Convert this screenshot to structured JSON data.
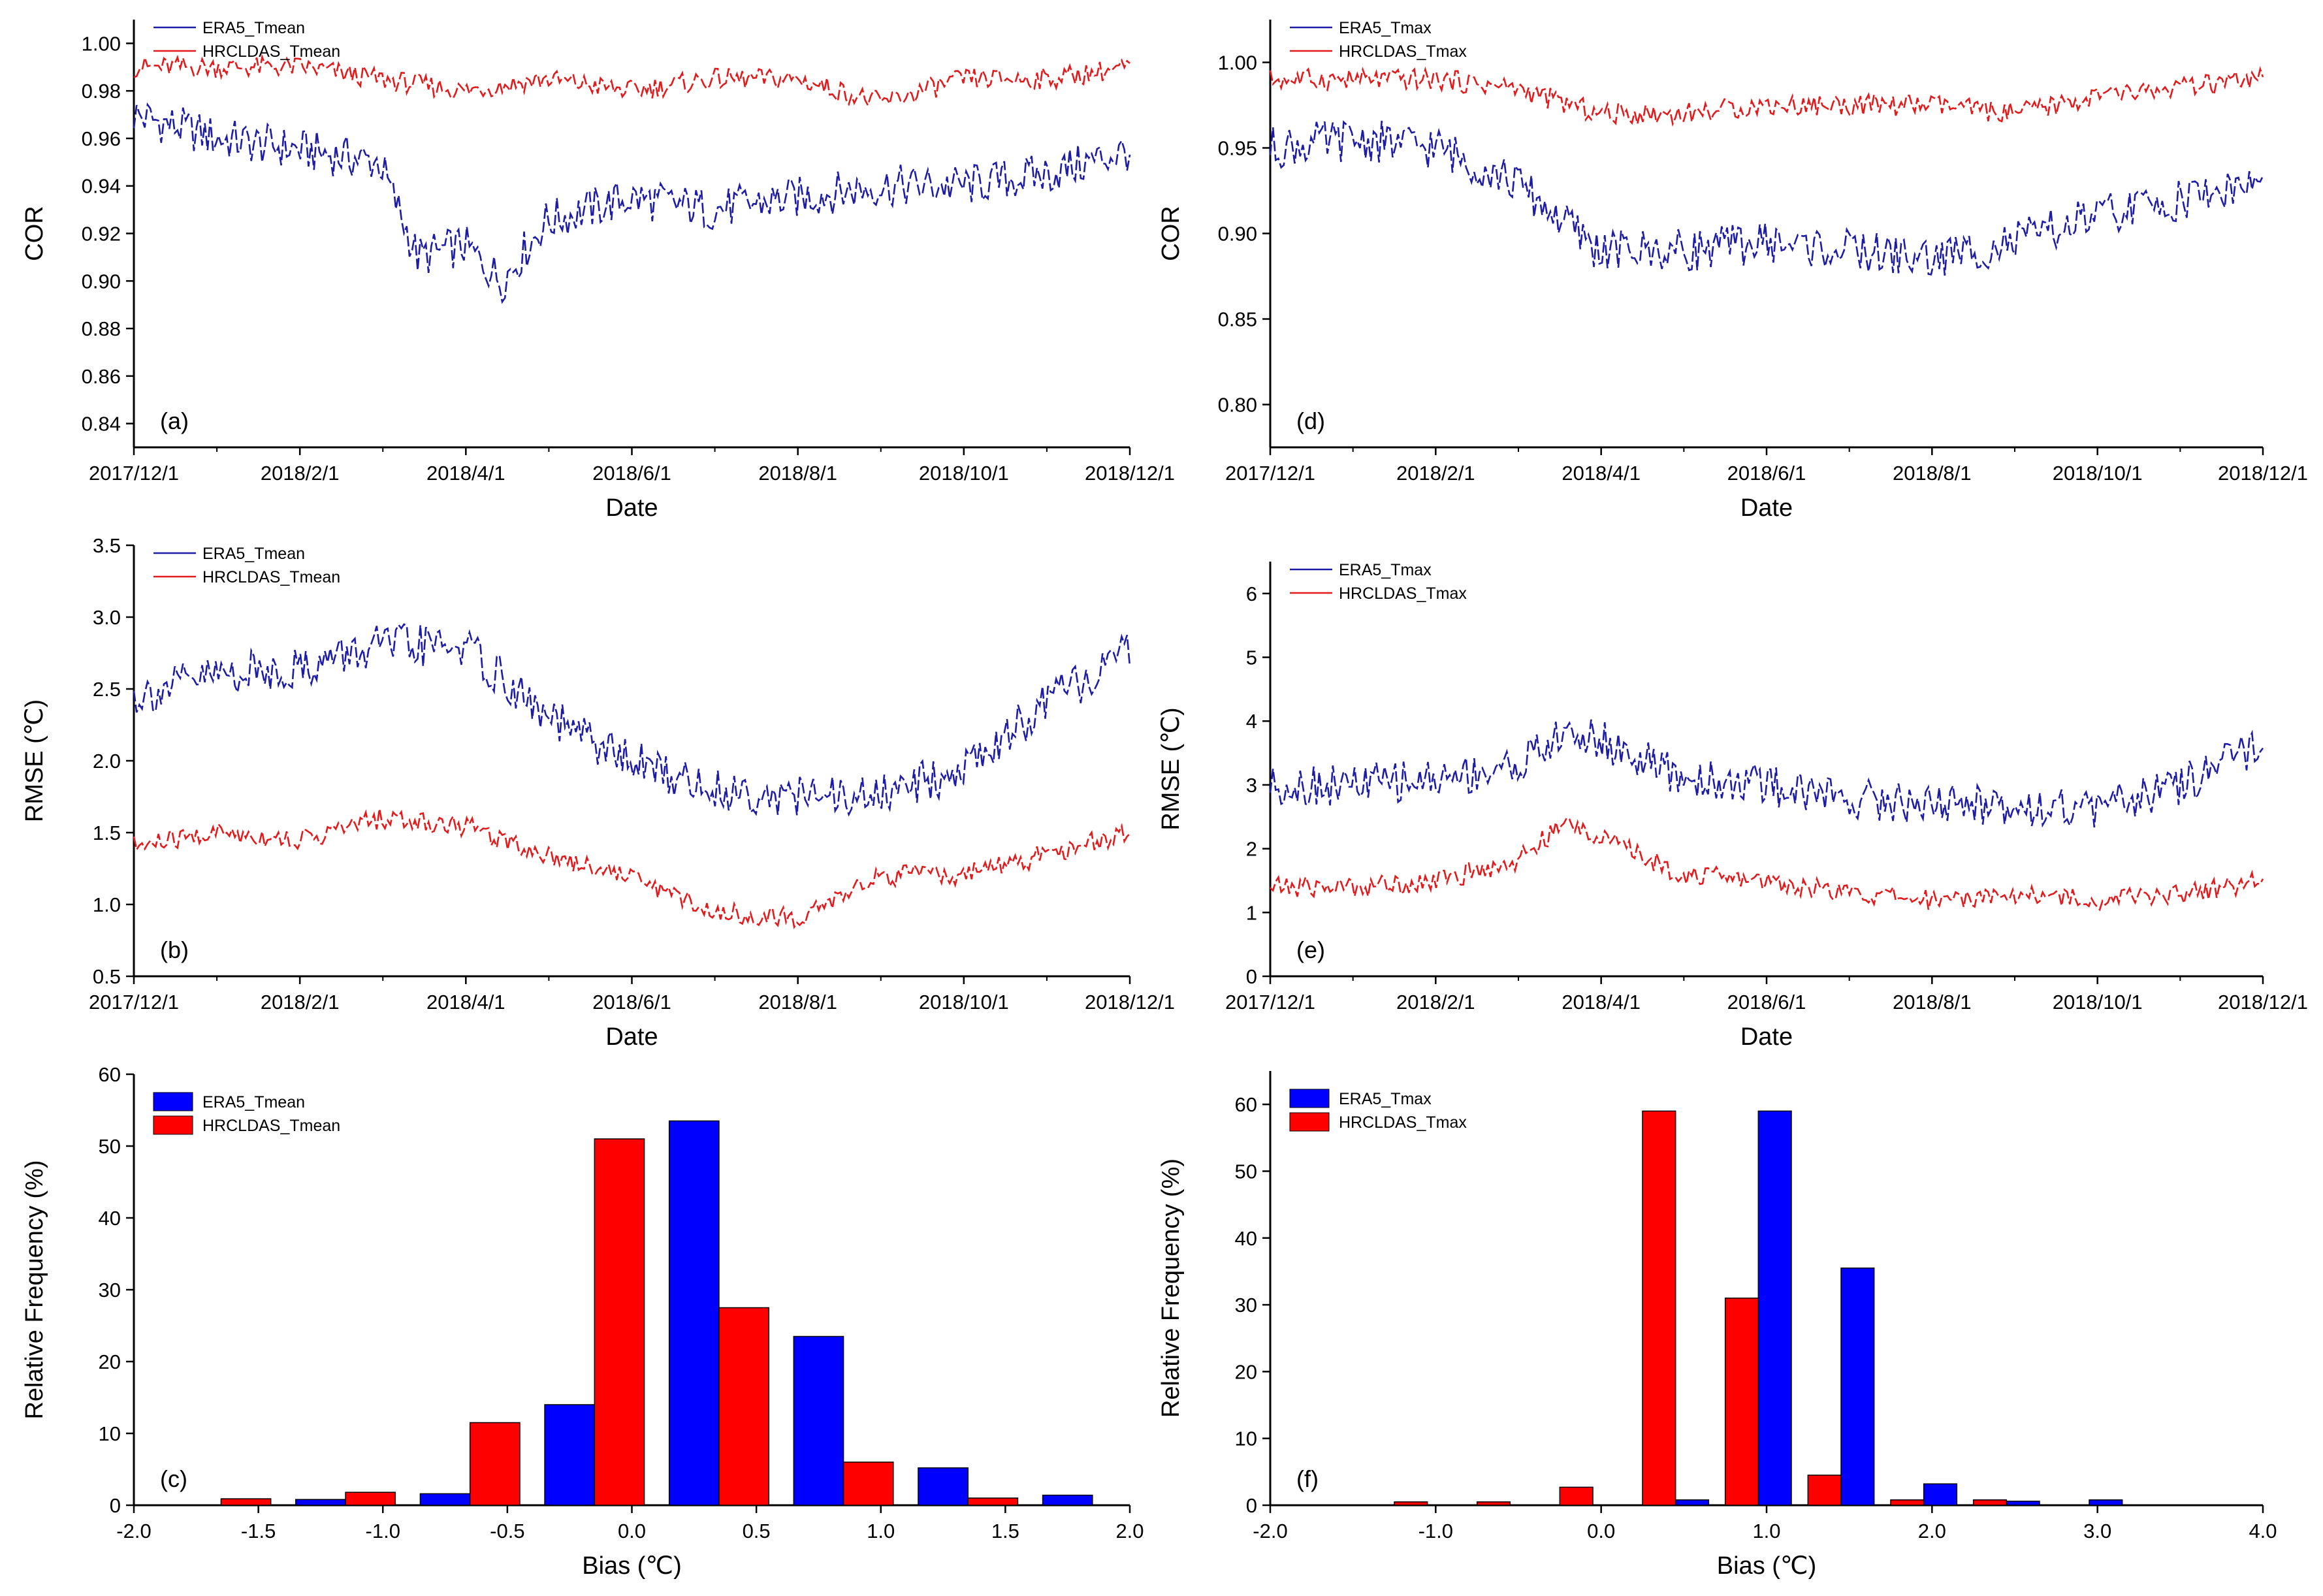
{
  "figure": {
    "colors": {
      "era5": "#1c1ca6",
      "hrcldas": "#e31a1c",
      "era5_bar": "#0000ff",
      "hrcldas_bar": "#ff0000"
    }
  },
  "chart_data": [
    {
      "id": "a",
      "type": "line",
      "panel_label": "(a)",
      "xlabel": "Date",
      "ylabel": "COR",
      "x_ticks": [
        "2017/12/1",
        "2018/2/1",
        "2018/4/1",
        "2018/6/1",
        "2018/8/1",
        "2018/10/1",
        "2018/12/1"
      ],
      "x_range": [
        "2017-12-01",
        "2018-12-01"
      ],
      "ylim": [
        0.83,
        1.01
      ],
      "y_ticks": [
        "0.84",
        "0.86",
        "0.88",
        "0.90",
        "0.92",
        "0.94",
        "0.96",
        "0.98",
        "1.00"
      ],
      "y_tick_values": [
        0.84,
        0.86,
        0.88,
        0.9,
        0.92,
        0.94,
        0.96,
        0.98,
        1.0
      ],
      "legend_position": "top-left",
      "series": [
        {
          "name": "ERA5_Tmean",
          "color": "#1c1ca6",
          "style": "dashed",
          "x": [
            "2017-12-01",
            "2018-01-01",
            "2018-02-01",
            "2018-03-01",
            "2018-03-15",
            "2018-04-01",
            "2018-04-15",
            "2018-05-01",
            "2018-06-01",
            "2018-07-01",
            "2018-08-01",
            "2018-09-01",
            "2018-10-01",
            "2018-11-01",
            "2018-12-01"
          ],
          "y": [
            0.97,
            0.96,
            0.955,
            0.95,
            0.91,
            0.915,
            0.9,
            0.925,
            0.935,
            0.93,
            0.935,
            0.94,
            0.94,
            0.945,
            0.955
          ]
        },
        {
          "name": "HRCLDAS_Tmean",
          "color": "#e31a1c",
          "style": "dashed",
          "x": [
            "2017-12-01",
            "2018-01-01",
            "2018-02-01",
            "2018-03-01",
            "2018-04-01",
            "2018-05-01",
            "2018-06-01",
            "2018-07-01",
            "2018-08-01",
            "2018-09-01",
            "2018-10-01",
            "2018-11-01",
            "2018-12-01"
          ],
          "y": [
            0.99,
            0.99,
            0.99,
            0.985,
            0.98,
            0.985,
            0.98,
            0.985,
            0.985,
            0.975,
            0.985,
            0.985,
            0.99
          ]
        }
      ]
    },
    {
      "id": "d",
      "type": "line",
      "panel_label": "(d)",
      "xlabel": "Date",
      "ylabel": "COR",
      "x_ticks": [
        "2017/12/1",
        "2018/2/1",
        "2018/4/1",
        "2018/6/1",
        "2018/8/1",
        "2018/10/1",
        "2018/12/1"
      ],
      "x_range": [
        "2017-12-01",
        "2018-12-01"
      ],
      "ylim": [
        0.775,
        1.025
      ],
      "y_ticks": [
        "0.80",
        "0.85",
        "0.90",
        "0.95",
        "1.00"
      ],
      "y_tick_values": [
        0.8,
        0.85,
        0.9,
        0.95,
        1.0
      ],
      "legend_position": "top-left",
      "series": [
        {
          "name": "ERA5_Tmax",
          "color": "#1c1ca6",
          "style": "dashed",
          "x": [
            "2017-12-01",
            "2018-01-01",
            "2018-02-01",
            "2018-03-01",
            "2018-04-01",
            "2018-05-01",
            "2018-06-01",
            "2018-07-01",
            "2018-08-01",
            "2018-09-01",
            "2018-10-01",
            "2018-11-01",
            "2018-12-01"
          ],
          "y": [
            0.95,
            0.955,
            0.95,
            0.93,
            0.89,
            0.89,
            0.895,
            0.89,
            0.885,
            0.895,
            0.91,
            0.92,
            0.93
          ]
        },
        {
          "name": "HRCLDAS_Tmax",
          "color": "#e31a1c",
          "style": "dashed",
          "x": [
            "2017-12-01",
            "2018-01-01",
            "2018-02-01",
            "2018-03-01",
            "2018-04-01",
            "2018-05-01",
            "2018-06-01",
            "2018-07-01",
            "2018-08-01",
            "2018-09-01",
            "2018-10-01",
            "2018-11-01",
            "2018-12-01"
          ],
          "y": [
            0.99,
            0.99,
            0.99,
            0.985,
            0.97,
            0.97,
            0.975,
            0.975,
            0.975,
            0.97,
            0.98,
            0.985,
            0.99
          ]
        }
      ]
    },
    {
      "id": "b",
      "type": "line",
      "panel_label": "(b)",
      "xlabel": "Date",
      "ylabel": "RMSE (℃)",
      "x_ticks": [
        "2017/12/1",
        "2018/2/1",
        "2018/4/1",
        "2018/6/1",
        "2018/8/1",
        "2018/10/1",
        "2018/12/1"
      ],
      "x_range": [
        "2017-12-01",
        "2018-12-01"
      ],
      "ylim": [
        0.5,
        3.5
      ],
      "y_ticks": [
        "0.5",
        "1.0",
        "1.5",
        "2.0",
        "2.5",
        "3.0",
        "3.5"
      ],
      "y_tick_values": [
        0.5,
        1.0,
        1.5,
        2.0,
        2.5,
        3.0,
        3.5
      ],
      "legend_position": "top-left",
      "series": [
        {
          "name": "ERA5_Tmean",
          "color": "#1c1ca6",
          "style": "dashed",
          "x": [
            "2017-12-01",
            "2018-01-01",
            "2018-02-01",
            "2018-03-01",
            "2018-04-01",
            "2018-05-01",
            "2018-06-01",
            "2018-07-01",
            "2018-08-01",
            "2018-09-01",
            "2018-10-01",
            "2018-11-01",
            "2018-12-01"
          ],
          "y": [
            2.45,
            2.6,
            2.65,
            2.8,
            2.8,
            2.3,
            2.0,
            1.8,
            1.75,
            1.75,
            1.95,
            2.4,
            2.75
          ]
        },
        {
          "name": "HRCLDAS_Tmean",
          "color": "#e31a1c",
          "style": "dashed",
          "x": [
            "2017-12-01",
            "2018-01-01",
            "2018-02-01",
            "2018-03-01",
            "2018-04-01",
            "2018-05-01",
            "2018-06-01",
            "2018-07-01",
            "2018-08-01",
            "2018-09-01",
            "2018-10-01",
            "2018-11-01",
            "2018-12-01"
          ],
          "y": [
            1.4,
            1.5,
            1.45,
            1.6,
            1.55,
            1.35,
            1.2,
            0.95,
            0.9,
            1.2,
            1.2,
            1.35,
            1.5
          ]
        }
      ]
    },
    {
      "id": "e",
      "type": "line",
      "panel_label": "(e)",
      "xlabel": "Date",
      "ylabel": "RMSE (℃)",
      "x_ticks": [
        "2017/12/1",
        "2018/2/1",
        "2018/4/1",
        "2018/6/1",
        "2018/8/1",
        "2018/10/1",
        "2018/12/1"
      ],
      "x_range": [
        "2017-12-01",
        "2018-12-01"
      ],
      "ylim": [
        0,
        6.5
      ],
      "y_ticks": [
        "0",
        "1",
        "2",
        "3",
        "4",
        "5",
        "6"
      ],
      "y_tick_values": [
        0,
        1,
        2,
        3,
        4,
        5,
        6
      ],
      "legend_position": "top-left",
      "series": [
        {
          "name": "ERA5_Tmax",
          "color": "#1c1ca6",
          "style": "dashed",
          "x": [
            "2017-12-01",
            "2018-01-01",
            "2018-02-01",
            "2018-03-01",
            "2018-03-20",
            "2018-04-01",
            "2018-05-01",
            "2018-06-01",
            "2018-07-01",
            "2018-08-01",
            "2018-09-01",
            "2018-10-01",
            "2018-11-01",
            "2018-12-01"
          ],
          "y": [
            3.0,
            3.0,
            3.1,
            3.3,
            3.8,
            3.7,
            3.1,
            3.0,
            2.8,
            2.7,
            2.7,
            2.6,
            3.0,
            3.6
          ]
        },
        {
          "name": "HRCLDAS_Tmax",
          "color": "#e31a1c",
          "style": "dashed",
          "x": [
            "2017-12-01",
            "2018-01-01",
            "2018-02-01",
            "2018-03-01",
            "2018-03-20",
            "2018-04-01",
            "2018-05-01",
            "2018-06-01",
            "2018-07-01",
            "2018-08-01",
            "2018-09-01",
            "2018-10-01",
            "2018-11-01",
            "2018-12-01"
          ],
          "y": [
            1.4,
            1.4,
            1.5,
            1.8,
            2.4,
            2.2,
            1.6,
            1.5,
            1.3,
            1.2,
            1.3,
            1.2,
            1.3,
            1.5
          ]
        }
      ]
    },
    {
      "id": "c",
      "type": "bar",
      "panel_label": "(c)",
      "xlabel": "Bias (℃)",
      "ylabel": "Relative Frequency (%)",
      "xlim": [
        -2.0,
        2.0
      ],
      "x_ticks": [
        "-2.0",
        "-1.5",
        "-1.0",
        "-0.5",
        "0.0",
        "0.5",
        "1.0",
        "1.5",
        "2.0"
      ],
      "x_tick_values": [
        -2.0,
        -1.5,
        -1.0,
        -0.5,
        0.0,
        0.5,
        1.0,
        1.5,
        2.0
      ],
      "ylim": [
        0,
        60
      ],
      "y_ticks": [
        "0",
        "10",
        "20",
        "30",
        "40",
        "50",
        "60"
      ],
      "y_tick_values": [
        0,
        10,
        20,
        30,
        40,
        50,
        60
      ],
      "bar_width": 0.2,
      "legend_position": "top-left",
      "series": [
        {
          "name": "ERA5_Tmean",
          "color": "#0000ff",
          "x": [
            -1.75,
            -1.25,
            -0.75,
            -0.25,
            0.25,
            0.75,
            1.25,
            1.75
          ],
          "values": [
            0,
            0.8,
            1.6,
            14,
            53.5,
            23.5,
            5.2,
            1.4
          ]
        },
        {
          "name": "HRCLDAS_Tmean",
          "color": "#ff0000",
          "x": [
            -1.55,
            -1.05,
            -0.55,
            -0.05,
            0.45,
            0.95,
            1.45
          ],
          "values": [
            0.9,
            1.8,
            11.5,
            51,
            27.5,
            6,
            1.0
          ]
        }
      ]
    },
    {
      "id": "f",
      "type": "bar",
      "panel_label": "(f)",
      "xlabel": "Bias (℃)",
      "ylabel": "Relative Frequency (%)",
      "xlim": [
        -2.0,
        4.0
      ],
      "x_ticks": [
        "-2.0",
        "-1.0",
        "0.0",
        "1.0",
        "2.0",
        "3.0",
        "4.0"
      ],
      "x_tick_values": [
        -2.0,
        -1.0,
        0.0,
        1.0,
        2.0,
        3.0,
        4.0
      ],
      "ylim": [
        0,
        65
      ],
      "y_ticks": [
        "0",
        "10",
        "20",
        "30",
        "40",
        "50",
        "60"
      ],
      "y_tick_values": [
        0,
        10,
        20,
        30,
        40,
        50,
        60
      ],
      "bar_width": 0.2,
      "legend_position": "top-left",
      "series": [
        {
          "name": "ERA5_Tmax",
          "color": "#0000ff",
          "x": [
            0.55,
            1.05,
            1.55,
            2.05,
            2.55,
            3.05
          ],
          "values": [
            0.8,
            59,
            35.5,
            3.2,
            0.6,
            0.8
          ]
        },
        {
          "name": "HRCLDAS_Tmax",
          "color": "#ff0000",
          "x": [
            -1.15,
            -0.65,
            -0.15,
            0.35,
            0.85,
            1.35,
            1.85,
            2.35
          ],
          "values": [
            0.5,
            0.5,
            2.7,
            59,
            31,
            4.5,
            0.8,
            0.8
          ]
        }
      ]
    }
  ]
}
